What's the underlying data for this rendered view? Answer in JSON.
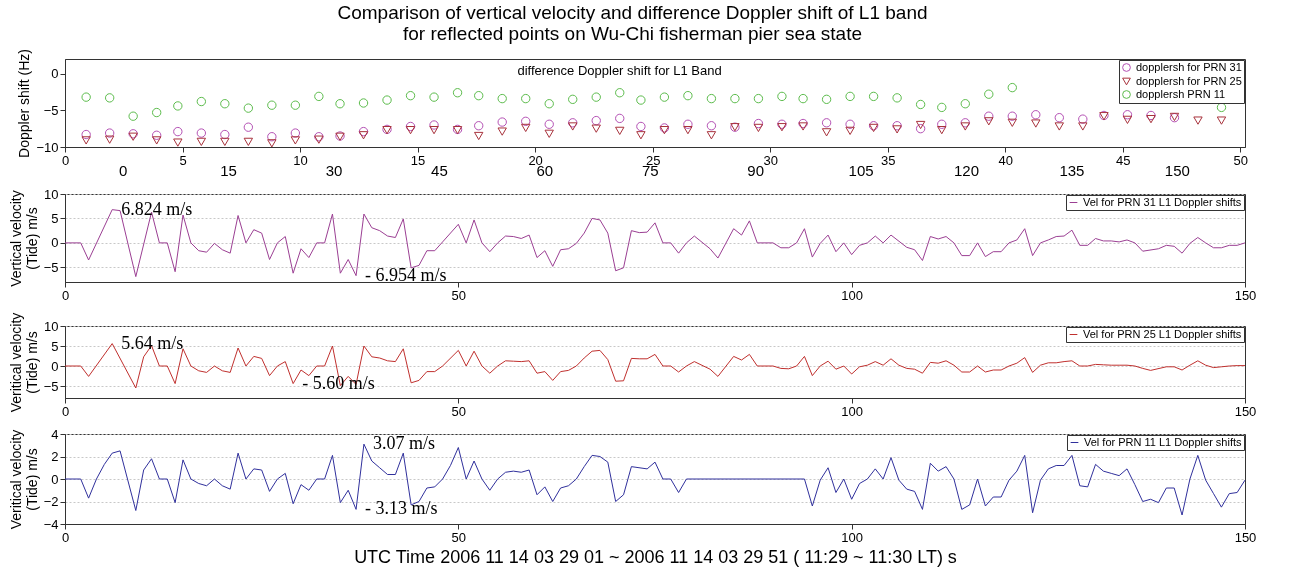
{
  "chart_data": [
    {
      "type": "scatter",
      "title": "Comparison of vertical velocity and difference Doppler shift of L1 band\nfor reflected points on Wu-Chi fisherman pier sea state",
      "ylabel": "Doppler shift (Hz)",
      "annotations": [
        "difference Doppler shift for L1 Band"
      ],
      "x": [
        0.9,
        1.9,
        2.9,
        3.9,
        4.8,
        5.8,
        6.8,
        7.8,
        8.8,
        9.8,
        10.8,
        11.7,
        12.7,
        13.7,
        14.7,
        15.7,
        16.7,
        17.6,
        18.6,
        19.6,
        20.6,
        21.6,
        22.6,
        23.6,
        24.5,
        25.5,
        26.5,
        27.5,
        28.5,
        29.5,
        30.5,
        31.4,
        32.4,
        33.4,
        34.4,
        35.4,
        36.4,
        37.3,
        38.3,
        39.3,
        40.3,
        41.3,
        42.3,
        43.3,
        44.2,
        45.2,
        46.2,
        47.2,
        48.2,
        49.2
      ],
      "xlim": [
        0,
        50.2
      ],
      "xticks": [
        0,
        5,
        10,
        15,
        20,
        25,
        30,
        35,
        40,
        45,
        50
      ],
      "x2lim": [
        -8.2,
        159.7
      ],
      "x2ticks": [
        0,
        15,
        30,
        45,
        60,
        75,
        90,
        105,
        120,
        135,
        150
      ],
      "ylim": [
        -10,
        2
      ],
      "yticks": [
        -10,
        -5,
        0
      ],
      "grid": false,
      "legend": "top right",
      "series": [
        {
          "name": "dopplersh for PRN 31",
          "color": "#b450b4",
          "marker": "circle",
          "values": [
            -8.3,
            -8.1,
            -8.2,
            -8.4,
            -7.9,
            -8.1,
            -8.3,
            -7.3,
            -8.6,
            -8.1,
            -8.6,
            -8.5,
            -7.9,
            -7.6,
            -7.2,
            -7.0,
            -7.6,
            -7.1,
            -6.6,
            -6.5,
            -6.9,
            -6.7,
            -6.4,
            -6.1,
            -7.2,
            -7.4,
            -6.9,
            -7.1,
            -7.3,
            -6.8,
            -6.9,
            -6.8,
            -6.7,
            -6.9,
            -7.1,
            -7.1,
            -7.5,
            -6.9,
            -6.7,
            -5.8,
            -5.8,
            -5.6,
            -6.0,
            -6.2,
            -5.7,
            -5.6,
            -5.7,
            -6.0,
            null,
            null
          ]
        },
        {
          "name": "dopplersh for PRN 25",
          "color": "#a8323c",
          "marker": "triangle",
          "values": [
            -9.1,
            -9.0,
            -8.6,
            -9.1,
            -9.4,
            -9.3,
            -9.3,
            -9.3,
            -9.5,
            -9.1,
            -9.0,
            -8.6,
            -8.4,
            -7.7,
            -7.7,
            -7.7,
            -7.7,
            -8.5,
            -7.9,
            -7.4,
            -8.2,
            -7.2,
            -7.5,
            -7.8,
            -8.4,
            -7.7,
            -7.7,
            -8.4,
            -7.3,
            -7.4,
            -7.3,
            -7.2,
            -8.0,
            -7.8,
            -7.4,
            -7.6,
            -7.0,
            -7.7,
            -7.2,
            -6.5,
            -6.7,
            -6.8,
            -7.2,
            -7.2,
            -5.8,
            -6.3,
            -6.2,
            -5.9,
            -6.4,
            -6.4
          ]
        },
        {
          "name": "dopplersh PRN 11",
          "color": "#5cbc4c",
          "marker": "circle",
          "values": [
            -3.2,
            -3.3,
            -5.8,
            -5.3,
            -4.4,
            -3.8,
            -4.1,
            -4.7,
            -4.3,
            -4.3,
            -3.1,
            -4.1,
            -4.0,
            -3.6,
            -3.0,
            -3.2,
            -2.6,
            -3.0,
            -3.4,
            -3.4,
            -4.1,
            -3.5,
            -3.2,
            -2.6,
            -3.6,
            -3.2,
            -3.0,
            -3.4,
            -3.4,
            -3.4,
            -3.1,
            -3.4,
            -3.5,
            -3.1,
            -3.1,
            -3.3,
            -4.2,
            -4.6,
            -4.1,
            -2.8,
            -1.9,
            null,
            null,
            null,
            null,
            null,
            null,
            null,
            null,
            -4.6
          ]
        }
      ]
    },
    {
      "type": "line",
      "ylabel": "Vertical velocity\n(Tide) m/s",
      "xlim": [
        0,
        150
      ],
      "xticks": [
        0,
        50,
        100,
        150
      ],
      "ylim": [
        -8,
        10
      ],
      "yticks": [
        -5,
        0,
        5,
        10
      ],
      "grid": "y",
      "legend": "top right",
      "annotations": [
        {
          "text": "6.824 m/s",
          "x": 6,
          "y": 6.8
        },
        {
          "text": "- 6.954 m/s",
          "x": 37,
          "y": -6.7
        }
      ],
      "series": [
        {
          "name": "Vel for PRN 31 L1 Doppler shifts",
          "color": "#9b3f93",
          "x": [
            0,
            2,
            3,
            6,
            7,
            9,
            11,
            12,
            13,
            14,
            15,
            16,
            17,
            18,
            19,
            20,
            21,
            22,
            23,
            24,
            25,
            26,
            27,
            28,
            29,
            30,
            31,
            32,
            33,
            34,
            35,
            36,
            37,
            38,
            39,
            40,
            41,
            42,
            43,
            44,
            45,
            46,
            47,
            48,
            50,
            51,
            52,
            53,
            54,
            55,
            56,
            57,
            58,
            59,
            60,
            61,
            62,
            63,
            64,
            65,
            66,
            67,
            68,
            69,
            70,
            71,
            72,
            73,
            74,
            75,
            76,
            77,
            78,
            79,
            80,
            82,
            83,
            85,
            86,
            87,
            88,
            90,
            91,
            92,
            93,
            94,
            95,
            96,
            97,
            98,
            99,
            100,
            101,
            102,
            103,
            104,
            105,
            107,
            108,
            109,
            110,
            111,
            112,
            113,
            114,
            115,
            116,
            117,
            118,
            119,
            120,
            121,
            122,
            123,
            124,
            125,
            126,
            127,
            128,
            129,
            130,
            131,
            132,
            133,
            134,
            135,
            136,
            137,
            139,
            140,
            141,
            142,
            143,
            144,
            145,
            146,
            147,
            148,
            149,
            150
          ],
          "values": [
            0,
            0,
            -3.5,
            6.8,
            6.6,
            -6.9,
            6.3,
            0,
            0,
            -5.9,
            5.7,
            0,
            -1.6,
            -1.9,
            -0.1,
            -1.4,
            -2.1,
            5.6,
            0,
            2.7,
            2,
            -3.4,
            0,
            1.3,
            -6.2,
            -1.2,
            -3,
            0,
            0,
            5.9,
            -6.2,
            -3.4,
            -6.7,
            5.9,
            3.1,
            2.5,
            1.4,
            1.1,
            4.9,
            -5.1,
            -4.6,
            -1.6,
            -1.6,
            0.2,
            3.8,
            0,
            4.7,
            0,
            -1.8,
            0,
            1.4,
            1.3,
            0.9,
            1.6,
            -3,
            -1.6,
            -4.8,
            -1.4,
            -1.2,
            -0.1,
            2,
            5,
            4.7,
            2,
            -5.7,
            -5.1,
            2.5,
            2.1,
            2.2,
            4.1,
            0,
            0,
            -2.1,
            0,
            1.4,
            -1.2,
            -3.1,
            2.9,
            1.6,
            4.5,
            0,
            0,
            -1,
            -1,
            0,
            2.9,
            -2.9,
            -0.1,
            1.6,
            -1.8,
            0,
            -2.4,
            -0.5,
            0,
            1.4,
            0,
            1.6,
            -0.9,
            -1.4,
            -3.6,
            1.3,
            0.8,
            1.3,
            0,
            -2.6,
            -2.6,
            0,
            -2.8,
            -1.8,
            -1.8,
            0,
            0.6,
            2.9,
            -2.6,
            0,
            0.6,
            1.3,
            1.4,
            2.6,
            -0.5,
            -0.5,
            0.9,
            0.4,
            0.4,
            0.2,
            0.6,
            0,
            -1.7,
            -1.2,
            -0.5,
            -0.7,
            -2.1,
            -0.1,
            1.1,
            0,
            -1,
            -1,
            -0.5,
            -0.5,
            0
          ]
        }
      ]
    },
    {
      "type": "line",
      "ylabel": "Veritical velocity\n(Tide) m/s",
      "xlim": [
        0,
        150
      ],
      "xticks": [
        0,
        50,
        100,
        150
      ],
      "ylim": [
        -8,
        10
      ],
      "yticks": [
        -5,
        0,
        5,
        10
      ],
      "grid": "y",
      "legend": "top right",
      "annotations": [
        {
          "text": "5.64 m/s",
          "x": 6,
          "y": 5.6
        },
        {
          "text": "- 5.60 m/s",
          "x": 29,
          "y": -4.4
        }
      ],
      "series": [
        {
          "name": "Vel for PRN 25 L1 Doppler shifts",
          "color": "#c0302e",
          "x": [
            0,
            2,
            3,
            6,
            9,
            10,
            11,
            12,
            13,
            14,
            15,
            16,
            17,
            18,
            19,
            20,
            21,
            22,
            23,
            24,
            25,
            26,
            27,
            28,
            29,
            30,
            31,
            32,
            33,
            34,
            35,
            36,
            37,
            38,
            39,
            40,
            41,
            42,
            43,
            44,
            45,
            46,
            47,
            48,
            50,
            51,
            52,
            53,
            54,
            55,
            56,
            57,
            58,
            59,
            60,
            61,
            62,
            63,
            64,
            65,
            66,
            67,
            68,
            69,
            70,
            71,
            72,
            73,
            74,
            75,
            76,
            77,
            78,
            79,
            80,
            82,
            83,
            85,
            86,
            87,
            88,
            90,
            91,
            92,
            93,
            94,
            95,
            96,
            97,
            98,
            99,
            100,
            101,
            102,
            103,
            104,
            105,
            106,
            107,
            108,
            109,
            110,
            111,
            112,
            113,
            114,
            115,
            116,
            117,
            118,
            119,
            120,
            121,
            122,
            123,
            124,
            125,
            126,
            127,
            128,
            129,
            130,
            131,
            132,
            133,
            134,
            135,
            136,
            137,
            138,
            140,
            141,
            142,
            143,
            144,
            145,
            146,
            147,
            148,
            149,
            150
          ],
          "values": [
            0,
            0,
            -2.6,
            5.6,
            -5.5,
            2.3,
            5.1,
            0,
            0,
            -4.4,
            4.3,
            0,
            -1.2,
            -1.6,
            0,
            -1.2,
            -1.6,
            4.5,
            0,
            2.4,
            1.9,
            -2.4,
            0,
            1.1,
            -4.4,
            -1,
            -2.4,
            0,
            0,
            5,
            -4.9,
            -2.6,
            -4.6,
            5,
            2.3,
            2,
            1.3,
            1.1,
            4.3,
            -4.2,
            -3.6,
            -1.4,
            -1.4,
            0,
            3.9,
            0,
            3.7,
            0,
            -1.8,
            0,
            1.3,
            1.2,
            1.1,
            1.3,
            -1.8,
            -1.4,
            -3.6,
            -1.4,
            -1.1,
            0,
            2,
            3.7,
            3.9,
            1.6,
            -3.8,
            -3.7,
            1.9,
            1.8,
            1.8,
            2.9,
            0,
            0,
            -1.5,
            0,
            1.1,
            -0.8,
            -2.6,
            2.4,
            1.5,
            2.9,
            0,
            0,
            -0.6,
            -0.7,
            0,
            2.4,
            -2.4,
            0,
            1.2,
            -0.8,
            0,
            -2,
            -0.2,
            0.2,
            1.1,
            0.2,
            1.8,
            0.2,
            -0.6,
            -0.8,
            -1.8,
            0.9,
            0.7,
            1.3,
            0.2,
            -1.5,
            -1.5,
            0,
            -1.5,
            -1,
            -1,
            0,
            0.7,
            2.1,
            -1.6,
            0.2,
            0.8,
            0.8,
            1.1,
            1.3,
            0,
            0,
            0.4,
            0.3,
            0.2,
            0.2,
            0.2,
            0,
            -0.6,
            -1.1,
            -0.2,
            -0.2,
            -1,
            0.2,
            1.3,
            0.2,
            -0.4,
            -0.2,
            0,
            0.1,
            0.1
          ]
        }
      ]
    },
    {
      "type": "line",
      "ylabel": "Veritical velocity\n(Tide) m/s",
      "xlabel": "UTC Time 2006 11 14 03 29 01 ~ 2006 11 14 03 29 51 ( 11:29 ~ 11:30 LT)  s",
      "xlim": [
        0,
        150
      ],
      "xticks": [
        0,
        50,
        100,
        150
      ],
      "ylim": [
        -4,
        4
      ],
      "yticks": [
        -4,
        -2,
        0,
        2,
        4
      ],
      "grid": "y",
      "legend": "top right",
      "annotations": [
        {
          "text": "3.07 m/s",
          "x": 38,
          "y": 3.1
        },
        {
          "text": "- 3.13 m/s",
          "x": 37,
          "y": -2.7
        }
      ],
      "series": [
        {
          "name": "Vel for PRN 11 L1 Doppler shifts",
          "color": "#30309c",
          "x": [
            0,
            2,
            3,
            4,
            5,
            6,
            7,
            9,
            10,
            11,
            12,
            13,
            14,
            15,
            16,
            17,
            18,
            19,
            20,
            21,
            22,
            23,
            24,
            25,
            26,
            27,
            28,
            29,
            30,
            31,
            32,
            33,
            34,
            35,
            36,
            37,
            38,
            39,
            40,
            41,
            42,
            43,
            44,
            45,
            46,
            47,
            48,
            49,
            50,
            51,
            52,
            53,
            54,
            55,
            56,
            57,
            58,
            59,
            60,
            61,
            62,
            63,
            64,
            65,
            66,
            67,
            68,
            69,
            70,
            71,
            72,
            74,
            75,
            76,
            77,
            78,
            79,
            94,
            95,
            96,
            97,
            98,
            99,
            100,
            101,
            102,
            103,
            104,
            105,
            106,
            107,
            108,
            109,
            110,
            111,
            112,
            113,
            114,
            115,
            116,
            117,
            118,
            119,
            120,
            121,
            122,
            123,
            124,
            125,
            126,
            127,
            128,
            129,
            130,
            131,
            132,
            133,
            134,
            135,
            136,
            137,
            138,
            139,
            140,
            141,
            142,
            143,
            144,
            145,
            146,
            147,
            148,
            149,
            150
          ],
          "values": [
            0,
            0,
            -1.7,
            0,
            1.3,
            2.3,
            2.5,
            -2.8,
            0.8,
            1.8,
            0,
            0,
            -2.1,
            1.7,
            0,
            -0.4,
            -0.6,
            0,
            -0.6,
            -0.9,
            2.3,
            0,
            0.9,
            0.8,
            -1.1,
            0,
            0.5,
            -2.2,
            -0.5,
            -1,
            0,
            0,
            2.1,
            -2.1,
            -1,
            -2.7,
            3.1,
            1.6,
            1,
            0.4,
            0.4,
            2.3,
            -2.3,
            -2,
            -0.8,
            -0.7,
            0,
            1.2,
            2.8,
            0,
            1.6,
            0,
            -1,
            0,
            0.6,
            0.7,
            0.6,
            0.8,
            -1.4,
            -0.7,
            -2,
            -0.8,
            -0.6,
            0,
            1.1,
            2.1,
            2,
            1.5,
            -2,
            -1.4,
            1.1,
            0.9,
            1.5,
            0,
            0,
            -1.2,
            0,
            0,
            -2.4,
            -0.1,
            1,
            -1.2,
            0,
            -1.8,
            -0.4,
            0,
            0.9,
            0,
            1.9,
            -0.1,
            -0.9,
            -1.1,
            -2.7,
            1.4,
            0.7,
            1.1,
            0,
            -2.7,
            -2.3,
            0,
            -2.4,
            -1.6,
            -1.6,
            -0.1,
            0.7,
            2.1,
            -3,
            -0.1,
            0.9,
            1.2,
            1.2,
            2.1,
            -0.6,
            -0.7,
            1.3,
            0.7,
            0.5,
            0.3,
            0.9,
            -0.5,
            -2,
            -1.8,
            -2.1,
            -0.8,
            -0.8,
            -3.2,
            0,
            2.1,
            -0.1,
            -1.3,
            -2.5,
            -1.3,
            -1.2,
            -0.1
          ]
        }
      ]
    }
  ]
}
